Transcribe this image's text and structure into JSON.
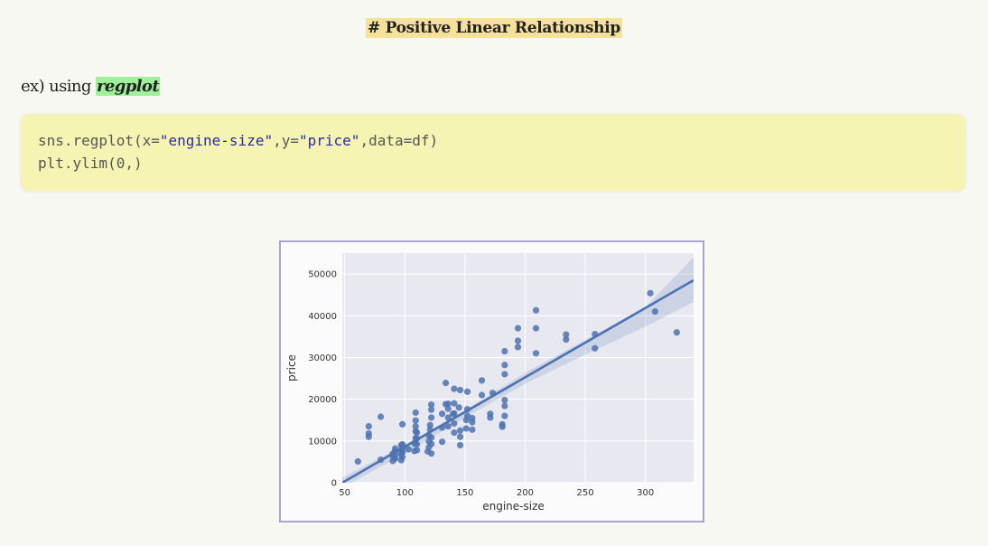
{
  "heading": "# Positive Linear Relationship",
  "example": {
    "prefix": "ex) using ",
    "highlight": "regplot"
  },
  "code": {
    "line1_a": "sns.regplot(x=",
    "line1_x": "\"engine-size\"",
    "line1_b": ",y=",
    "line1_y": "\"price\"",
    "line1_c": ",data=df)",
    "line2": "plt.ylim(0,)"
  },
  "chart_data": {
    "type": "scatter",
    "xlabel": "engine-size",
    "ylabel": "price",
    "xlim": [
      48,
      340
    ],
    "ylim": [
      0,
      55000
    ],
    "xticks": [
      50,
      100,
      150,
      200,
      250,
      300
    ],
    "yticks": [
      0,
      10000,
      20000,
      30000,
      40000,
      50000
    ],
    "grid": true,
    "regression_line": {
      "x": [
        48,
        340
      ],
      "y": [
        0,
        48500
      ]
    },
    "confidence_band": {
      "x": [
        48,
        100,
        150,
        200,
        250,
        300,
        340
      ],
      "lower": [
        -1200,
        7000,
        15600,
        23700,
        30700,
        37400,
        43300
      ],
      "upper": [
        1200,
        9100,
        17400,
        26300,
        34200,
        42100,
        54000
      ]
    },
    "points": [
      [
        61,
        5100
      ],
      [
        70,
        13500
      ],
      [
        70,
        11800
      ],
      [
        70,
        11000
      ],
      [
        80,
        15800
      ],
      [
        80,
        5500
      ],
      [
        90,
        5200
      ],
      [
        90,
        6400
      ],
      [
        90,
        7000
      ],
      [
        91,
        6100
      ],
      [
        92,
        6700
      ],
      [
        92,
        7600
      ],
      [
        92,
        8200
      ],
      [
        92,
        5800
      ],
      [
        97,
        5400
      ],
      [
        97,
        6800
      ],
      [
        97,
        7800
      ],
      [
        97,
        9000
      ],
      [
        98,
        6200
      ],
      [
        98,
        8300
      ],
      [
        98,
        9200
      ],
      [
        98,
        7300
      ],
      [
        98,
        14000
      ],
      [
        103,
        8000
      ],
      [
        108,
        7600
      ],
      [
        108,
        9400
      ],
      [
        109,
        10700
      ],
      [
        109,
        12300
      ],
      [
        109,
        13500
      ],
      [
        109,
        14900
      ],
      [
        109,
        16800
      ],
      [
        110,
        7800
      ],
      [
        110,
        9200
      ],
      [
        110,
        10600
      ],
      [
        110,
        12000
      ],
      [
        119,
        7500
      ],
      [
        120,
        8500
      ],
      [
        120,
        9900
      ],
      [
        120,
        11300
      ],
      [
        121,
        12700
      ],
      [
        121,
        13800
      ],
      [
        122,
        7000
      ],
      [
        122,
        9300
      ],
      [
        122,
        10800
      ],
      [
        122,
        15600
      ],
      [
        122,
        17500
      ],
      [
        122,
        18700
      ],
      [
        131,
        9800
      ],
      [
        131,
        13200
      ],
      [
        131,
        16500
      ],
      [
        134,
        18800
      ],
      [
        134,
        23900
      ],
      [
        136,
        13500
      ],
      [
        136,
        15600
      ],
      [
        136,
        17700
      ],
      [
        136,
        18900
      ],
      [
        140,
        16500
      ],
      [
        141,
        12000
      ],
      [
        141,
        14200
      ],
      [
        141,
        16600
      ],
      [
        141,
        19000
      ],
      [
        141,
        22500
      ],
      [
        145,
        18000
      ],
      [
        146,
        9000
      ],
      [
        146,
        11000
      ],
      [
        146,
        12500
      ],
      [
        146,
        22200
      ],
      [
        151,
        13000
      ],
      [
        151,
        15000
      ],
      [
        152,
        17600
      ],
      [
        152,
        21800
      ],
      [
        152,
        16000
      ],
      [
        156,
        12700
      ],
      [
        156,
        14500
      ],
      [
        156,
        15500
      ],
      [
        164,
        24500
      ],
      [
        164,
        21000
      ],
      [
        171,
        16500
      ],
      [
        171,
        15600
      ],
      [
        173,
        21500
      ],
      [
        181,
        13400
      ],
      [
        181,
        14000
      ],
      [
        183,
        16000
      ],
      [
        183,
        18400
      ],
      [
        183,
        19800
      ],
      [
        183,
        26000
      ],
      [
        183,
        28200
      ],
      [
        183,
        31500
      ],
      [
        194,
        32500
      ],
      [
        194,
        34000
      ],
      [
        194,
        37000
      ],
      [
        209,
        37000
      ],
      [
        209,
        41300
      ],
      [
        209,
        31000
      ],
      [
        234,
        34300
      ],
      [
        234,
        35500
      ],
      [
        258,
        32200
      ],
      [
        258,
        35600
      ],
      [
        304,
        45400
      ],
      [
        308,
        41000
      ],
      [
        326,
        36000
      ]
    ]
  }
}
